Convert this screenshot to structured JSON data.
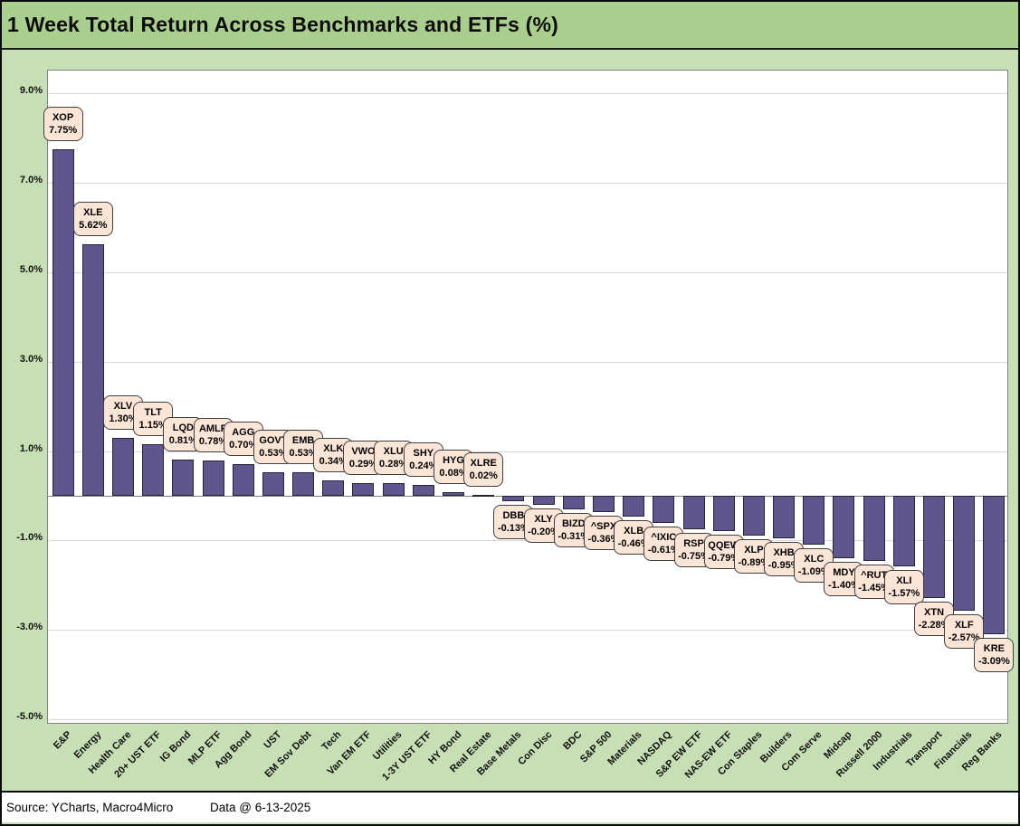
{
  "title": "1 Week Total Return Across Benchmarks and ETFs (%)",
  "footer": {
    "source": "Source: YCharts, Macro4Micro",
    "data_date": "Data @ 6-13-2025"
  },
  "colors": {
    "title_bg": "#A9CE8D",
    "body_bg": "#C7DFB4",
    "bar_fill": "#5E568C",
    "bar_border": "#262237",
    "callout_bg": "#FBE5D6",
    "callout_border": "#3F3F3F",
    "grid": "#D9D9D9",
    "axis_line": "#808080",
    "plot_border": "#808080"
  },
  "chart_data": {
    "type": "bar",
    "title": "1 Week Total Return Across Benchmarks and ETFs (%)",
    "categories": [
      "E&P",
      "Energy",
      "Health Care",
      "20+ UST ETF",
      "IG Bond",
      "MLP ETF",
      "Agg Bond",
      "UST",
      "EM Sov Debt",
      "Tech",
      "Van EM ETF",
      "Utilities",
      "1-3Y UST ETF",
      "HY Bond",
      "Real Estate",
      "Base Metals",
      "Con Disc",
      "BDC",
      "S&P 500",
      "Materials",
      "NASDAQ",
      "S&P EW ETF",
      "NAS-EW ETF",
      "Con Staples",
      "Builders",
      "Com Serve",
      "Midcap",
      "Russell 2000",
      "Industrials",
      "Transport",
      "Financials",
      "Reg Banks"
    ],
    "tickers": [
      "XOP",
      "XLE",
      "XLV",
      "TLT",
      "LQD",
      "AMLP",
      "AGG",
      "GOVT",
      "EMB",
      "XLK",
      "VWO",
      "XLU",
      "SHY",
      "HYG",
      "XLRE",
      "DBB",
      "XLY",
      "BIZD",
      "^SPX",
      "XLB",
      "^IXIC",
      "RSP",
      "QQEW",
      "XLP",
      "XHB",
      "XLC",
      "MDY",
      "^RUT",
      "XLI",
      "XTN",
      "XLF",
      "KRE"
    ],
    "series": [
      {
        "name": "1 Week Total Return (%)",
        "values": [
          7.75,
          5.62,
          1.3,
          1.15,
          0.81,
          0.78,
          0.7,
          0.53,
          0.53,
          0.34,
          0.29,
          0.28,
          0.24,
          0.08,
          0.02,
          -0.13,
          -0.2,
          -0.31,
          -0.36,
          -0.46,
          -0.61,
          -0.75,
          -0.79,
          -0.89,
          -0.95,
          -1.09,
          -1.4,
          -1.45,
          -1.57,
          -2.28,
          -2.57,
          -3.09
        ]
      }
    ],
    "y_ticks": [
      9,
      7,
      5,
      3,
      1,
      -1,
      -3,
      -5
    ],
    "y_tick_labels": [
      "9.0%",
      "7.0%",
      "5.0%",
      "3.0%",
      "1.0%",
      "-1.0%",
      "-3.0%",
      "-5.0%"
    ],
    "ylim": [
      -5.1,
      9.5
    ],
    "xlabel": "",
    "ylabel": "",
    "grid": true,
    "legend": "none",
    "bar_label_format": "{ticker}\n{value}%",
    "bar_label_position": "outside-end"
  }
}
